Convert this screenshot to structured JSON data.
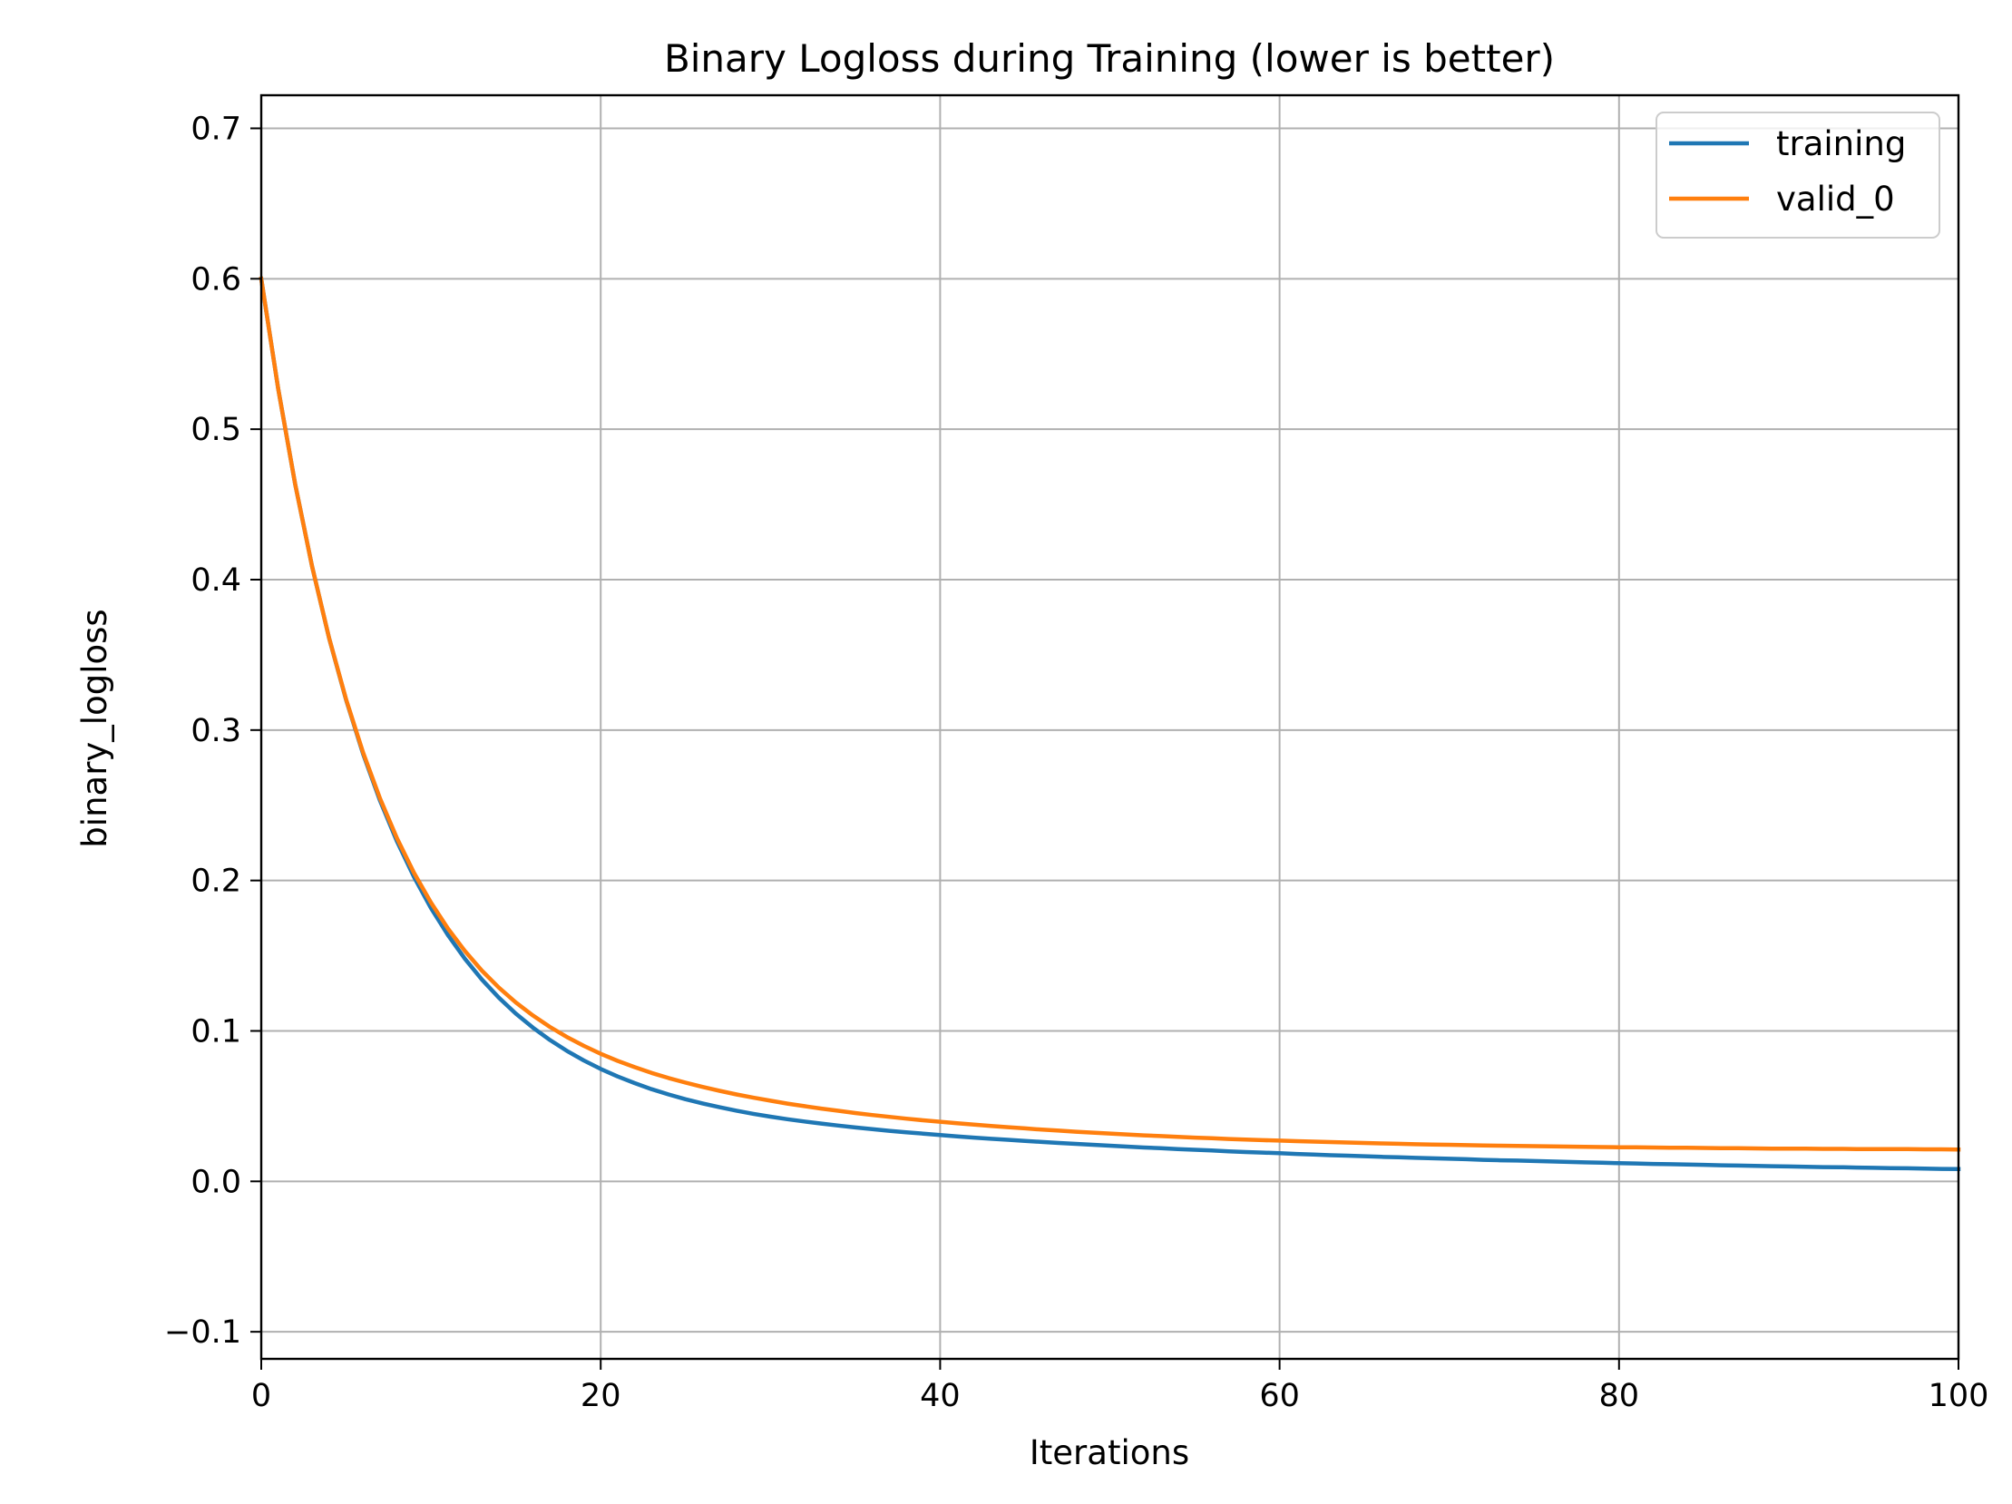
{
  "chart_data": {
    "type": "line",
    "title": "Binary Logloss during Training (lower is better)",
    "xlabel": "Iterations",
    "ylabel": "binary_logloss",
    "xlim": [
      0,
      100
    ],
    "ylim": [
      -0.118,
      0.722
    ],
    "xticks": [
      0,
      20,
      40,
      60,
      80,
      100
    ],
    "xtick_labels": [
      "0",
      "20",
      "40",
      "60",
      "80",
      "100"
    ],
    "yticks": [
      -0.1,
      0.0,
      0.1,
      0.2,
      0.3,
      0.4,
      0.5,
      0.6,
      0.7
    ],
    "ytick_labels": [
      "−0.1",
      "0.0",
      "0.1",
      "0.2",
      "0.3",
      "0.4",
      "0.5",
      "0.6",
      "0.7"
    ],
    "grid": true,
    "legend_position": "top-right",
    "x": [
      0,
      1,
      2,
      3,
      4,
      5,
      6,
      7,
      8,
      9,
      10,
      11,
      12,
      13,
      14,
      15,
      16,
      17,
      18,
      19,
      20,
      21,
      22,
      23,
      24,
      25,
      26,
      27,
      28,
      29,
      30,
      31,
      32,
      33,
      34,
      35,
      36,
      37,
      38,
      39,
      40,
      41,
      42,
      43,
      44,
      45,
      46,
      47,
      48,
      49,
      50,
      51,
      52,
      53,
      54,
      55,
      56,
      57,
      58,
      59,
      60,
      61,
      62,
      63,
      64,
      65,
      66,
      67,
      68,
      69,
      70,
      71,
      72,
      73,
      74,
      75,
      76,
      77,
      78,
      79,
      80,
      81,
      82,
      83,
      84,
      85,
      86,
      87,
      88,
      89,
      90,
      91,
      92,
      93,
      94,
      95,
      96,
      97,
      98,
      99,
      100
    ],
    "series": [
      {
        "name": "training",
        "color": "#1f77b4",
        "values": [
          0.6,
          0.5268,
          0.4634,
          0.4086,
          0.3611,
          0.3199,
          0.2841,
          0.253,
          0.2259,
          0.2023,
          0.1817,
          0.1637,
          0.148,
          0.1342,
          0.1221,
          0.1115,
          0.1022,
          0.094,
          0.0868,
          0.0804,
          0.0747,
          0.0697,
          0.0653,
          0.0613,
          0.0578,
          0.0546,
          0.0518,
          0.0493,
          0.047,
          0.0449,
          0.043,
          0.0413,
          0.0398,
          0.0384,
          0.0371,
          0.0358,
          0.0347,
          0.0336,
          0.0326,
          0.0317,
          0.0308,
          0.0299,
          0.0291,
          0.0283,
          0.0276,
          0.0269,
          0.0262,
          0.0255,
          0.0249,
          0.0243,
          0.0237,
          0.0231,
          0.0225,
          0.022,
          0.0215,
          0.021,
          0.0205,
          0.02,
          0.0195,
          0.0191,
          0.0187,
          0.0182,
          0.0178,
          0.0174,
          0.0171,
          0.0167,
          0.0163,
          0.016,
          0.0156,
          0.0153,
          0.015,
          0.0147,
          0.0143,
          0.014,
          0.0138,
          0.0135,
          0.0132,
          0.0129,
          0.0126,
          0.0124,
          0.0121,
          0.0119,
          0.0116,
          0.0114,
          0.0112,
          0.011,
          0.0107,
          0.0105,
          0.0103,
          0.0101,
          0.0099,
          0.0097,
          0.0095,
          0.0094,
          0.0092,
          0.009,
          0.0088,
          0.0087,
          0.0085,
          0.0083,
          0.0082
        ]
      },
      {
        "name": "valid_0",
        "color": "#ff7f0e",
        "values": [
          0.6,
          0.5268,
          0.4634,
          0.4086,
          0.3612,
          0.3203,
          0.285,
          0.2544,
          0.228,
          0.2051,
          0.1853,
          0.1681,
          0.1531,
          0.1401,
          0.1288,
          0.1189,
          0.1103,
          0.1027,
          0.096,
          0.0901,
          0.0848,
          0.0801,
          0.0759,
          0.0721,
          0.0687,
          0.0656,
          0.0628,
          0.0602,
          0.0578,
          0.0556,
          0.0536,
          0.0517,
          0.05,
          0.0484,
          0.0469,
          0.0454,
          0.0441,
          0.0429,
          0.0417,
          0.0406,
          0.0396,
          0.0386,
          0.0377,
          0.0368,
          0.036,
          0.0352,
          0.0344,
          0.0337,
          0.033,
          0.0324,
          0.0318,
          0.0312,
          0.0306,
          0.0301,
          0.0296,
          0.0291,
          0.0287,
          0.0282,
          0.0278,
          0.0274,
          0.0271,
          0.0267,
          0.0264,
          0.0261,
          0.0258,
          0.0255,
          0.0252,
          0.025,
          0.0247,
          0.0245,
          0.0243,
          0.0241,
          0.0239,
          0.0237,
          0.0235,
          0.0234,
          0.0232,
          0.0231,
          0.0229,
          0.0228,
          0.0227,
          0.0226,
          0.0225,
          0.0224,
          0.0223,
          0.0222,
          0.0221,
          0.022,
          0.0219,
          0.0218,
          0.0218,
          0.0217,
          0.0216,
          0.0216,
          0.0215,
          0.0215,
          0.0214,
          0.0214,
          0.0213,
          0.0213,
          0.0212
        ]
      }
    ]
  }
}
